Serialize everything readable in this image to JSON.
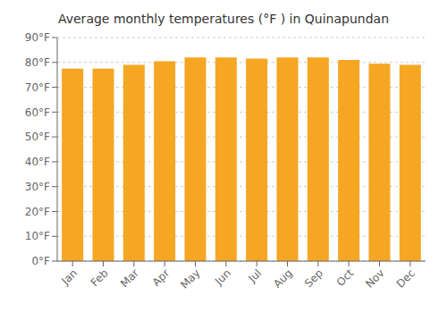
{
  "chart_data": {
    "type": "bar",
    "title": "Average monthly temperatures (°F ) in Quinapundan",
    "categories": [
      "Jan",
      "Feb",
      "Mar",
      "Apr",
      "May",
      "Jun",
      "Jul",
      "Aug",
      "Sep",
      "Oct",
      "Nov",
      "Dec"
    ],
    "values": [
      77.5,
      77.5,
      79.0,
      80.5,
      82.0,
      82.0,
      81.5,
      82.0,
      82.0,
      81.0,
      79.5,
      79.0
    ],
    "color": "#F5A623",
    "ylim": [
      0,
      90
    ],
    "yticks": [
      {
        "value": 0,
        "label": "0°F"
      },
      {
        "value": 10,
        "label": "10°F"
      },
      {
        "value": 20,
        "label": "20°F"
      },
      {
        "value": 30,
        "label": "30°F"
      },
      {
        "value": 40,
        "label": "40°F"
      },
      {
        "value": 50,
        "label": "50°F"
      },
      {
        "value": 60,
        "label": "60°F"
      },
      {
        "value": 70,
        "label": "70°F"
      },
      {
        "value": 80,
        "label": "80°F"
      },
      {
        "value": 90,
        "label": "90°F"
      }
    ],
    "grid": true
  }
}
